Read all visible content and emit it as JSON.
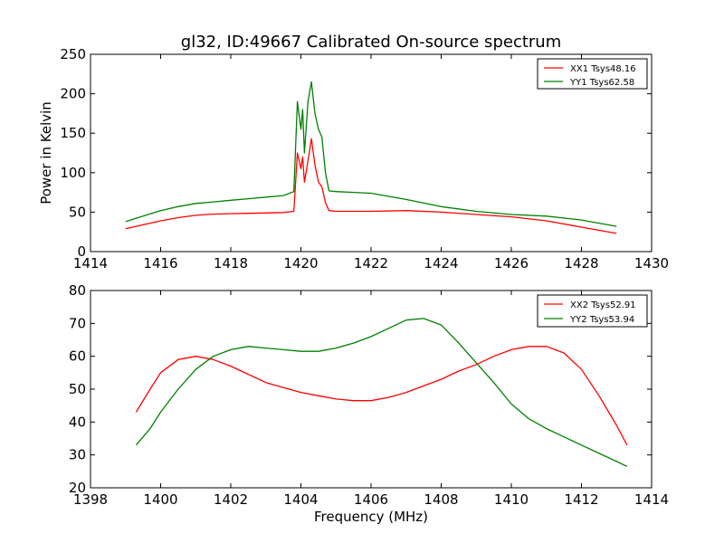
{
  "chart_data": [
    {
      "type": "line",
      "title": "gl32, ID:49667 Calibrated On-source spectrum",
      "xlabel": "",
      "ylabel": "Power in Kelvin",
      "xlim": [
        1414,
        1430
      ],
      "ylim": [
        0,
        250
      ],
      "xticks": [
        "1414",
        "1416",
        "1418",
        "1420",
        "1422",
        "1424",
        "1426",
        "1428",
        "1430"
      ],
      "yticks": [
        "0",
        "50",
        "100",
        "150",
        "200",
        "250"
      ],
      "grid": false,
      "legend_position": "top-right",
      "series": [
        {
          "name": "XX1 Tsys48.16",
          "color": "#ff0000",
          "points": [
            [
              1415.0,
              29
            ],
            [
              1415.5,
              34
            ],
            [
              1416.0,
              39
            ],
            [
              1416.5,
              43
            ],
            [
              1417.0,
              46
            ],
            [
              1417.5,
              47.5
            ],
            [
              1418.0,
              48
            ],
            [
              1418.5,
              48.5
            ],
            [
              1419.0,
              49
            ],
            [
              1419.5,
              49.5
            ],
            [
              1419.8,
              51
            ],
            [
              1419.9,
              125
            ],
            [
              1420.0,
              105
            ],
            [
              1420.05,
              120
            ],
            [
              1420.1,
              88
            ],
            [
              1420.2,
              115
            ],
            [
              1420.3,
              143
            ],
            [
              1420.4,
              110
            ],
            [
              1420.5,
              88
            ],
            [
              1420.6,
              82
            ],
            [
              1420.7,
              62
            ],
            [
              1420.8,
              52
            ],
            [
              1421.0,
              51
            ],
            [
              1422.0,
              51
            ],
            [
              1423.0,
              52
            ],
            [
              1424.0,
              50
            ],
            [
              1425.0,
              47
            ],
            [
              1426.0,
              44
            ],
            [
              1427.0,
              39
            ],
            [
              1428.0,
              31
            ],
            [
              1429.0,
              23
            ]
          ]
        },
        {
          "name": "YY1 Tsys62.58",
          "color": "#008000",
          "points": [
            [
              1415.0,
              38
            ],
            [
              1415.5,
              45
            ],
            [
              1416.0,
              52
            ],
            [
              1416.5,
              57
            ],
            [
              1417.0,
              61
            ],
            [
              1417.5,
              63
            ],
            [
              1418.0,
              65
            ],
            [
              1418.5,
              67
            ],
            [
              1419.0,
              69
            ],
            [
              1419.5,
              71
            ],
            [
              1419.8,
              76
            ],
            [
              1419.9,
              190
            ],
            [
              1420.0,
              155
            ],
            [
              1420.05,
              180
            ],
            [
              1420.1,
              125
            ],
            [
              1420.2,
              190
            ],
            [
              1420.3,
              215
            ],
            [
              1420.4,
              175
            ],
            [
              1420.5,
              155
            ],
            [
              1420.6,
              145
            ],
            [
              1420.7,
              100
            ],
            [
              1420.8,
              77
            ],
            [
              1421.0,
              76
            ],
            [
              1422.0,
              74
            ],
            [
              1423.0,
              66
            ],
            [
              1424.0,
              57
            ],
            [
              1425.0,
              51
            ],
            [
              1426.0,
              47
            ],
            [
              1427.0,
              45
            ],
            [
              1428.0,
              40
            ],
            [
              1429.0,
              32
            ]
          ]
        }
      ]
    },
    {
      "type": "line",
      "title": "",
      "xlabel": "Frequency (MHz)",
      "ylabel": "",
      "xlim": [
        1398,
        1414
      ],
      "ylim": [
        20,
        80
      ],
      "xticks": [
        "1398",
        "1400",
        "1402",
        "1404",
        "1406",
        "1408",
        "1410",
        "1412",
        "1414"
      ],
      "yticks": [
        "20",
        "30",
        "40",
        "50",
        "60",
        "70",
        "80"
      ],
      "grid": false,
      "legend_position": "top-right",
      "series": [
        {
          "name": "XX2 Tsys52.91",
          "color": "#ff0000",
          "points": [
            [
              1399.3,
              43
            ],
            [
              1399.7,
              50
            ],
            [
              1400.0,
              55
            ],
            [
              1400.5,
              59
            ],
            [
              1401.0,
              60
            ],
            [
              1401.5,
              59
            ],
            [
              1402.0,
              57
            ],
            [
              1402.5,
              54.5
            ],
            [
              1403.0,
              52
            ],
            [
              1403.5,
              50.5
            ],
            [
              1404.0,
              49
            ],
            [
              1404.5,
              48
            ],
            [
              1405.0,
              47
            ],
            [
              1405.5,
              46.5
            ],
            [
              1406.0,
              46.5
            ],
            [
              1406.5,
              47.5
            ],
            [
              1407.0,
              49
            ],
            [
              1407.5,
              51
            ],
            [
              1408.0,
              53
            ],
            [
              1408.5,
              55.5
            ],
            [
              1409.0,
              57.5
            ],
            [
              1409.5,
              60
            ],
            [
              1410.0,
              62
            ],
            [
              1410.5,
              63
            ],
            [
              1411.0,
              63
            ],
            [
              1411.5,
              61
            ],
            [
              1412.0,
              56
            ],
            [
              1412.5,
              48
            ],
            [
              1413.0,
              39
            ],
            [
              1413.3,
              33
            ]
          ]
        },
        {
          "name": "YY2 Tsys53.94",
          "color": "#008000",
          "points": [
            [
              1399.3,
              33
            ],
            [
              1399.7,
              38
            ],
            [
              1400.0,
              43
            ],
            [
              1400.5,
              50
            ],
            [
              1401.0,
              56
            ],
            [
              1401.5,
              60
            ],
            [
              1402.0,
              62
            ],
            [
              1402.5,
              63
            ],
            [
              1403.0,
              62.5
            ],
            [
              1403.5,
              62
            ],
            [
              1404.0,
              61.5
            ],
            [
              1404.5,
              61.5
            ],
            [
              1405.0,
              62.5
            ],
            [
              1405.5,
              64
            ],
            [
              1406.0,
              66
            ],
            [
              1406.5,
              68.5
            ],
            [
              1407.0,
              71
            ],
            [
              1407.5,
              71.5
            ],
            [
              1408.0,
              69.5
            ],
            [
              1408.5,
              64
            ],
            [
              1409.0,
              58
            ],
            [
              1409.5,
              52
            ],
            [
              1410.0,
              45.5
            ],
            [
              1410.5,
              41
            ],
            [
              1411.0,
              38
            ],
            [
              1411.5,
              35.5
            ],
            [
              1412.0,
              33
            ],
            [
              1412.5,
              30.5
            ],
            [
              1413.0,
              28
            ],
            [
              1413.3,
              26.5
            ]
          ]
        }
      ]
    }
  ]
}
